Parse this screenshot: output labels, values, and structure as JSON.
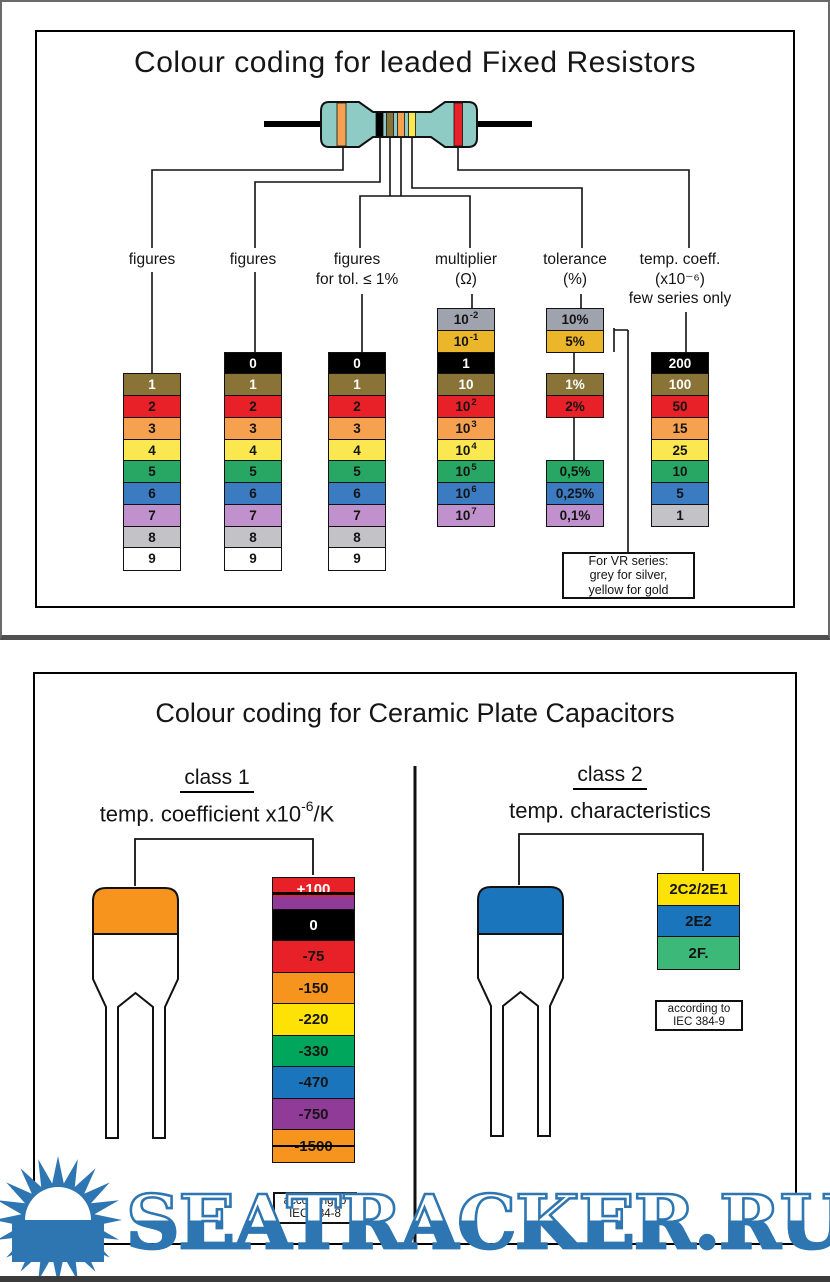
{
  "colors": {
    "black": "#000000",
    "brown": "#8a7336",
    "red": "#e82028",
    "orange": "#f6a150",
    "yellow": "#fbe74f",
    "green": "#27a763",
    "blue": "#3a7bc2",
    "violet": "#c091cc",
    "grey": "#c3c2c7",
    "silver": "#9ea3ad",
    "gold": "#ecb62b",
    "white": "#ffffff",
    "capOrange": "#f7941d",
    "capYellow": "#ffe205",
    "capGreen": "#00a65c",
    "capGreen2": "#3cb878",
    "capBlue": "#1b75bc",
    "capPurple": "#8f3b97",
    "resistorBody": "#8fcbc5",
    "watermarkBlue": "#2e76b1"
  },
  "panel1": {
    "title": "Colour coding for leaded Fixed Resistors",
    "resistor_bands": [
      "orange",
      "black",
      "brown",
      "orange",
      "yellow",
      "red"
    ],
    "labels": [
      {
        "lines": [
          "figures"
        ]
      },
      {
        "lines": [
          "figures"
        ]
      },
      {
        "lines": [
          "figures",
          "for tol. ≤ 1%"
        ]
      },
      {
        "lines": [
          "multiplier",
          "(Ω)"
        ]
      },
      {
        "lines": [
          "tolerance",
          "(%)"
        ]
      },
      {
        "lines": [
          "temp. coeff.",
          "(x10⁻⁶)",
          "few series only"
        ]
      }
    ],
    "columns": [
      {
        "name": "figures-1",
        "cells": [
          {
            "row": 3,
            "label": "1",
            "bg": "brown",
            "tc": "white"
          },
          {
            "row": 4,
            "label": "2",
            "bg": "red"
          },
          {
            "row": 5,
            "label": "3",
            "bg": "orange"
          },
          {
            "row": 6,
            "label": "4",
            "bg": "yellow"
          },
          {
            "row": 7,
            "label": "5",
            "bg": "green"
          },
          {
            "row": 8,
            "label": "6",
            "bg": "blue"
          },
          {
            "row": 9,
            "label": "7",
            "bg": "violet"
          },
          {
            "row": 10,
            "label": "8",
            "bg": "grey"
          },
          {
            "row": 11,
            "label": "9",
            "bg": "white"
          }
        ]
      },
      {
        "name": "figures-2",
        "cells": [
          {
            "row": 2,
            "label": "0",
            "bg": "black",
            "tc": "white"
          },
          {
            "row": 3,
            "label": "1",
            "bg": "brown",
            "tc": "white"
          },
          {
            "row": 4,
            "label": "2",
            "bg": "red"
          },
          {
            "row": 5,
            "label": "3",
            "bg": "orange"
          },
          {
            "row": 6,
            "label": "4",
            "bg": "yellow"
          },
          {
            "row": 7,
            "label": "5",
            "bg": "green"
          },
          {
            "row": 8,
            "label": "6",
            "bg": "blue"
          },
          {
            "row": 9,
            "label": "7",
            "bg": "violet"
          },
          {
            "row": 10,
            "label": "8",
            "bg": "grey"
          },
          {
            "row": 11,
            "label": "9",
            "bg": "white"
          }
        ]
      },
      {
        "name": "figures-3",
        "cells": [
          {
            "row": 2,
            "label": "0",
            "bg": "black",
            "tc": "white"
          },
          {
            "row": 3,
            "label": "1",
            "bg": "brown",
            "tc": "white"
          },
          {
            "row": 4,
            "label": "2",
            "bg": "red"
          },
          {
            "row": 5,
            "label": "3",
            "bg": "orange"
          },
          {
            "row": 6,
            "label": "4",
            "bg": "yellow"
          },
          {
            "row": 7,
            "label": "5",
            "bg": "green"
          },
          {
            "row": 8,
            "label": "6",
            "bg": "blue"
          },
          {
            "row": 9,
            "label": "7",
            "bg": "violet"
          },
          {
            "row": 10,
            "label": "8",
            "bg": "grey"
          },
          {
            "row": 11,
            "label": "9",
            "bg": "white"
          }
        ]
      },
      {
        "name": "multiplier",
        "cells": [
          {
            "row": 0,
            "label": "10",
            "exp": "-2",
            "bg": "silver"
          },
          {
            "row": 1,
            "label": "10",
            "exp": "-1",
            "bg": "gold"
          },
          {
            "row": 2,
            "label": "1",
            "bg": "black",
            "tc": "white"
          },
          {
            "row": 3,
            "label": "10",
            "bg": "brown",
            "tc": "white"
          },
          {
            "row": 4,
            "label": "10",
            "exp": "2",
            "bg": "red"
          },
          {
            "row": 5,
            "label": "10",
            "exp": "3",
            "bg": "orange"
          },
          {
            "row": 6,
            "label": "10",
            "exp": "4",
            "bg": "yellow"
          },
          {
            "row": 7,
            "label": "10",
            "exp": "5",
            "bg": "green"
          },
          {
            "row": 8,
            "label": "10",
            "exp": "6",
            "bg": "blue"
          },
          {
            "row": 9,
            "label": "10",
            "exp": "7",
            "bg": "violet"
          }
        ]
      },
      {
        "name": "tolerance",
        "cells": [
          {
            "row": 0,
            "label": "10%",
            "bg": "silver"
          },
          {
            "row": 1,
            "label": "5%",
            "bg": "gold"
          },
          {
            "row": 3,
            "label": "1%",
            "bg": "brown",
            "tc": "white"
          },
          {
            "row": 4,
            "label": "2%",
            "bg": "red"
          },
          {
            "row": 7,
            "label": "0,5%",
            "bg": "green"
          },
          {
            "row": 8,
            "label": "0,25%",
            "bg": "blue"
          },
          {
            "row": 9,
            "label": "0,1%",
            "bg": "violet"
          }
        ]
      },
      {
        "name": "temp-coeff",
        "cells": [
          {
            "row": 2,
            "label": "200",
            "bg": "black",
            "tc": "white"
          },
          {
            "row": 3,
            "label": "100",
            "bg": "brown",
            "tc": "white"
          },
          {
            "row": 4,
            "label": "50",
            "bg": "red"
          },
          {
            "row": 5,
            "label": "15",
            "bg": "orange"
          },
          {
            "row": 6,
            "label": "25",
            "bg": "yellow"
          },
          {
            "row": 7,
            "label": "10",
            "bg": "green"
          },
          {
            "row": 8,
            "label": "5",
            "bg": "blue"
          },
          {
            "row": 9,
            "label": "1",
            "bg": "grey"
          }
        ]
      }
    ],
    "vr_note": {
      "l1": "For VR series:",
      "l2": "grey for silver,",
      "l3": "yellow for gold"
    }
  },
  "panel2": {
    "title": "Colour coding for Ceramic Plate Capacitors",
    "class1": {
      "heading": "class 1",
      "subtitle_prefix": "temp. coefficient x10",
      "subtitle_exp": "-6",
      "subtitle_suffix": "/K",
      "cells": [
        {
          "label": "+100",
          "bg": "red",
          "bg2": "capPurple",
          "tc": "white",
          "strike": true
        },
        {
          "label": "0",
          "bg": "black",
          "tc": "white"
        },
        {
          "label": "-75",
          "bg": "red"
        },
        {
          "label": "-150",
          "bg": "capOrange"
        },
        {
          "label": "-220",
          "bg": "capYellow"
        },
        {
          "label": "-330",
          "bg": "capGreen"
        },
        {
          "label": "-470",
          "bg": "capBlue"
        },
        {
          "label": "-750",
          "bg": "capPurple"
        },
        {
          "label": "-1500",
          "bg": "capOrange",
          "strike": true
        }
      ],
      "note": {
        "l1": "according to",
        "l2": "IEC 384-8"
      }
    },
    "class2": {
      "heading": "class 2",
      "subtitle": "temp. characteristics",
      "cells": [
        {
          "label": "2C2/2E1",
          "bg": "capYellow"
        },
        {
          "label": "2E2",
          "bg": "capBlue"
        },
        {
          "label": "2F.",
          "bg": "capGreen2"
        }
      ],
      "note": {
        "l1": "according to",
        "l2": "IEC 384-9"
      }
    }
  },
  "watermark": {
    "text": "SEATRACKER.RU"
  }
}
